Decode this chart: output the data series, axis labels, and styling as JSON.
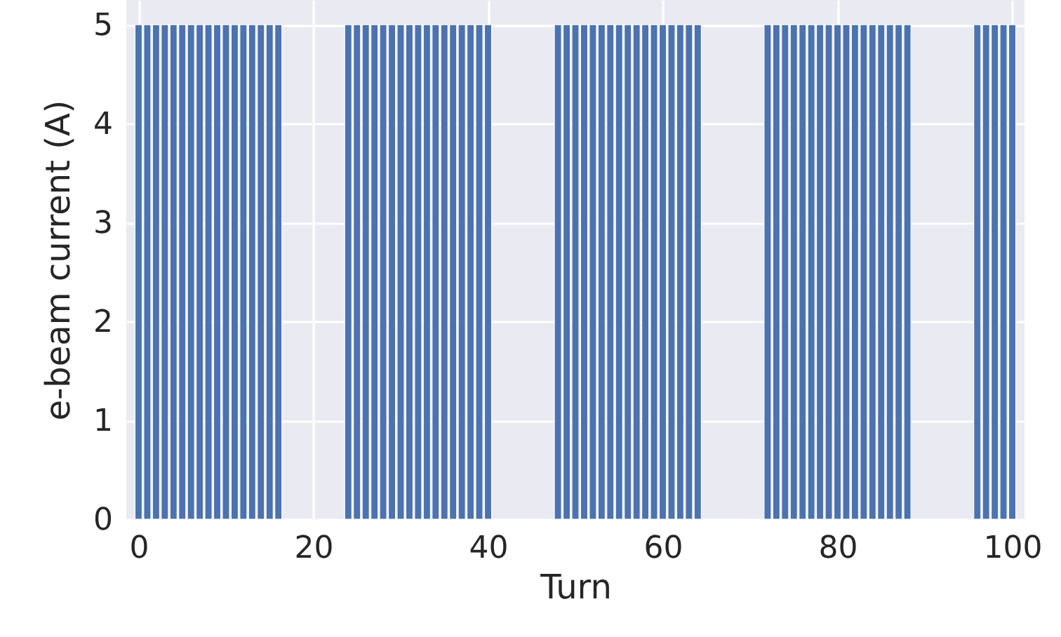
{
  "chart_data": {
    "type": "bar",
    "xlabel": "Turn",
    "ylabel": "e-beam current (A)",
    "x": [
      0,
      1,
      2,
      3,
      4,
      5,
      6,
      7,
      8,
      9,
      10,
      11,
      12,
      13,
      14,
      15,
      16,
      24,
      25,
      26,
      27,
      28,
      29,
      30,
      31,
      32,
      33,
      34,
      35,
      36,
      37,
      38,
      39,
      40,
      48,
      49,
      50,
      51,
      52,
      53,
      54,
      55,
      56,
      57,
      58,
      59,
      60,
      61,
      62,
      63,
      64,
      72,
      73,
      74,
      75,
      76,
      77,
      78,
      79,
      80,
      81,
      82,
      83,
      84,
      85,
      86,
      87,
      88,
      96,
      97,
      98,
      99,
      100
    ],
    "values": [
      5,
      5,
      5,
      5,
      5,
      5,
      5,
      5,
      5,
      5,
      5,
      5,
      5,
      5,
      5,
      5,
      5,
      5,
      5,
      5,
      5,
      5,
      5,
      5,
      5,
      5,
      5,
      5,
      5,
      5,
      5,
      5,
      5,
      5,
      5,
      5,
      5,
      5,
      5,
      5,
      5,
      5,
      5,
      5,
      5,
      5,
      5,
      5,
      5,
      5,
      5,
      5,
      5,
      5,
      5,
      5,
      5,
      5,
      5,
      5,
      5,
      5,
      5,
      5,
      5,
      5,
      5,
      5,
      5,
      5,
      5,
      5,
      5
    ],
    "color": "#4c72b0",
    "xlim": [
      -0.6,
      100.6
    ],
    "xticks": [
      0,
      20,
      40,
      60,
      80,
      100
    ],
    "ylim": [
      0,
      5.25
    ],
    "yticks": [
      0,
      1,
      2,
      3,
      4,
      5
    ],
    "grid": true
  }
}
